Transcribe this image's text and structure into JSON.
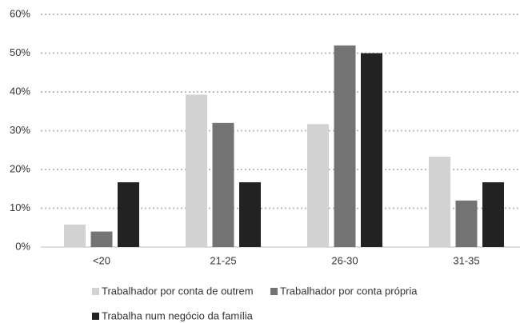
{
  "chart_data": {
    "type": "bar",
    "categories": [
      "<20",
      "21-25",
      "26-30",
      "31-35"
    ],
    "series": [
      {
        "name": "Trabalhador por conta de outrem",
        "color": "#d2d2d2",
        "values": [
          5.8,
          39.3,
          31.7,
          23.3
        ]
      },
      {
        "name": "Trabalhador por conta própria",
        "color": "#737373",
        "values": [
          4,
          32,
          52,
          12
        ]
      },
      {
        "name": "Trabalha num negócio da família",
        "color": "#222222",
        "values": [
          16.7,
          16.7,
          50,
          16.7
        ]
      }
    ],
    "ylim": [
      0,
      60
    ],
    "yticks": [
      {
        "value": 0,
        "label": "0%"
      },
      {
        "value": 10,
        "label": "10%"
      },
      {
        "value": 20,
        "label": "20%"
      },
      {
        "value": 30,
        "label": "30%"
      },
      {
        "value": 40,
        "label": "40%"
      },
      {
        "value": 50,
        "label": "50%"
      },
      {
        "value": 60,
        "label": "60%"
      }
    ],
    "grid": true,
    "legend": "bottom"
  }
}
